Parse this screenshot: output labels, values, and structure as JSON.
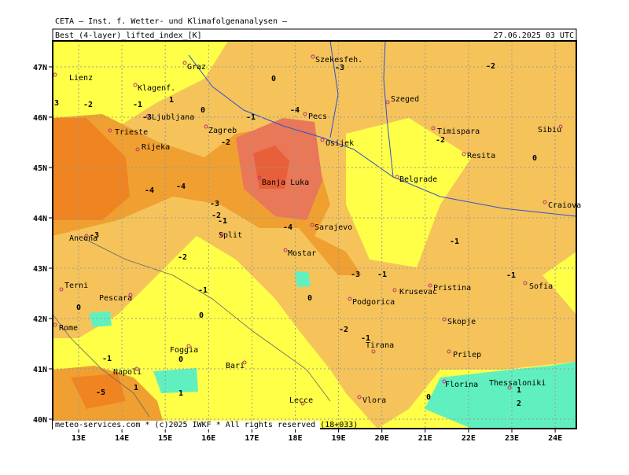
{
  "header": "CETA — Inst. f. Wetter- und Klimafolgenanalysen —",
  "title": "Best_(4-layer)_lifted_index_[K]",
  "timestamp": "27.06.2025 03 UTC",
  "footer": "meteo-services.com * (c)2025 IWKF * All rights reserved (18+033)",
  "lon_labels": [
    "13E",
    "14E",
    "15E",
    "16E",
    "17E",
    "18E",
    "19E",
    "20E",
    "21E",
    "22E",
    "23E",
    "24E"
  ],
  "lat_labels": [
    "47N",
    "46N",
    "45N",
    "44N",
    "43N",
    "42N",
    "41N",
    "40N"
  ],
  "cities": [
    "Graz",
    "Lienz",
    "Szekesfeh.",
    "Klagenf.",
    "Ljubljana",
    "Zagreb",
    "Pecs",
    "Szeged",
    "Trieste",
    "Rijeka",
    "Osijek",
    "Timispara",
    "Resita",
    "Sibiu",
    "Banja Luka",
    "Belgrade",
    "Craiova",
    "Sarajevo",
    "Ancona",
    "Split",
    "Mostar",
    "Krusevac",
    "Pristina",
    "Sofia",
    "Terni",
    "Pescara",
    "Podgorica",
    "Rome",
    "Skopje",
    "Tirana",
    "Prilep",
    "Foggia",
    "Bari",
    "Napoli",
    "Florina",
    "Thessaloniki",
    "Lecce",
    "Vlora"
  ],
  "contour_labels": [
    0,
    -3,
    -2,
    -1,
    -4,
    1,
    -2,
    0,
    -1,
    -3,
    -2,
    -4,
    -4,
    -3,
    -2,
    -1,
    -4,
    -2,
    -3,
    -1,
    -1,
    0,
    -3,
    -1,
    -1,
    0,
    -2,
    -1,
    0,
    1,
    -5,
    1,
    0,
    0,
    1,
    2,
    3,
    -1,
    0,
    -2
  ]
}
